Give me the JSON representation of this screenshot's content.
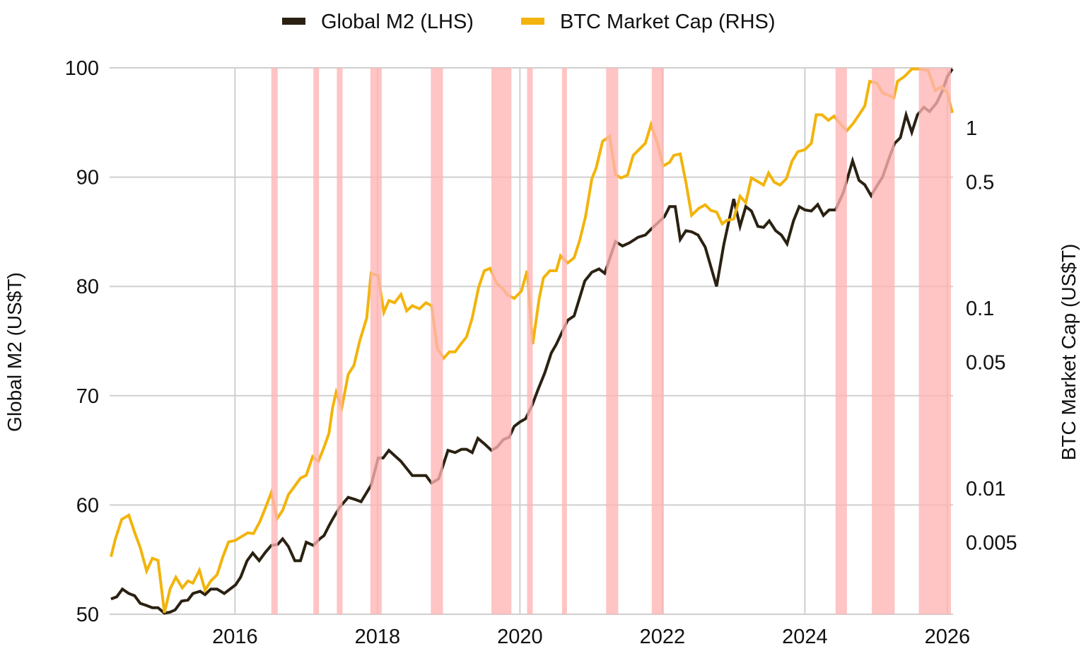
{
  "chart_data": {
    "type": "line",
    "title": "",
    "legend": {
      "placement": "top-center",
      "entries": [
        {
          "label": "Global M2 (LHS)",
          "color": "#2a2112"
        },
        {
          "label": "BTC Market Cap (RHS)",
          "color": "#f2b40c"
        }
      ]
    },
    "xlabel": "",
    "ylabel": "Global M2 (US$T)",
    "y2label": "BTC Market Cap (US$T)",
    "xlim": [
      2014.24,
      2026.08
    ],
    "ylim": [
      50,
      100
    ],
    "y2lim": [
      0.002,
      2.15
    ],
    "y2scale": "log",
    "grid": true,
    "x_ticks": [
      2016,
      2018,
      2020,
      2022,
      2024,
      2026
    ],
    "x_tick_labels": [
      "2016",
      "2018",
      "2020",
      "2022",
      "2024",
      "2026"
    ],
    "y_ticks": [
      50,
      60,
      70,
      80,
      90,
      100
    ],
    "y_tick_labels": [
      "50",
      "60",
      "70",
      "80",
      "90",
      "100"
    ],
    "y2_ticks": [
      1,
      0.5,
      0.1,
      0.05,
      0.01,
      0.005
    ],
    "y2_tick_labels": [
      "1",
      "0.5",
      "0.1",
      "0.05",
      "0.01",
      "0.005"
    ],
    "shaded_periods_color": "#ffb3b3",
    "shaded_periods": [
      [
        2016.51,
        2016.6
      ],
      [
        2017.1,
        2017.18
      ],
      [
        2017.43,
        2017.51
      ],
      [
        2017.9,
        2018.06
      ],
      [
        2018.75,
        2018.92
      ],
      [
        2019.6,
        2019.88
      ],
      [
        2020.1,
        2020.18
      ],
      [
        2020.59,
        2020.66
      ],
      [
        2021.21,
        2021.38
      ],
      [
        2021.85,
        2022.02
      ],
      [
        2024.43,
        2024.59
      ],
      [
        2024.94,
        2025.26
      ],
      [
        2025.6,
        2026.05
      ]
    ],
    "series": [
      {
        "name": "Global M2 (LHS)",
        "axis": "left",
        "color": "#2a2112",
        "points": [
          [
            2014.26,
            51.4
          ],
          [
            2014.34,
            51.6
          ],
          [
            2014.42,
            52.3
          ],
          [
            2014.51,
            51.9
          ],
          [
            2014.59,
            51.7
          ],
          [
            2014.67,
            51.0
          ],
          [
            2014.76,
            50.8
          ],
          [
            2014.84,
            50.6
          ],
          [
            2014.92,
            50.6
          ],
          [
            2015.01,
            50.1
          ],
          [
            2015.09,
            50.2
          ],
          [
            2015.16,
            50.4
          ],
          [
            2015.25,
            51.2
          ],
          [
            2015.34,
            51.3
          ],
          [
            2015.41,
            51.9
          ],
          [
            2015.51,
            52.1
          ],
          [
            2015.58,
            51.8
          ],
          [
            2015.66,
            52.3
          ],
          [
            2015.75,
            52.3
          ],
          [
            2015.85,
            51.9
          ],
          [
            2015.93,
            52.3
          ],
          [
            2016.01,
            52.7
          ],
          [
            2016.08,
            53.4
          ],
          [
            2016.17,
            54.9
          ],
          [
            2016.25,
            55.6
          ],
          [
            2016.34,
            54.9
          ],
          [
            2016.43,
            55.7
          ],
          [
            2016.51,
            56.3
          ],
          [
            2016.6,
            56.4
          ],
          [
            2016.67,
            56.9
          ],
          [
            2016.75,
            56.2
          ],
          [
            2016.84,
            54.9
          ],
          [
            2016.92,
            54.9
          ],
          [
            2017.0,
            56.6
          ],
          [
            2017.1,
            56.3
          ],
          [
            2017.19,
            56.9
          ],
          [
            2017.25,
            57.2
          ],
          [
            2017.32,
            58.1
          ],
          [
            2017.37,
            58.7
          ],
          [
            2017.47,
            59.8
          ],
          [
            2017.59,
            60.7
          ],
          [
            2017.69,
            60.5
          ],
          [
            2017.77,
            60.3
          ],
          [
            2017.91,
            61.8
          ],
          [
            2018.01,
            64.3
          ],
          [
            2018.08,
            64.3
          ],
          [
            2018.16,
            65.0
          ],
          [
            2018.33,
            64.0
          ],
          [
            2018.49,
            62.7
          ],
          [
            2018.59,
            62.7
          ],
          [
            2018.68,
            62.7
          ],
          [
            2018.76,
            62.0
          ],
          [
            2018.86,
            62.4
          ],
          [
            2018.99,
            65.0
          ],
          [
            2019.09,
            64.8
          ],
          [
            2019.18,
            65.1
          ],
          [
            2019.25,
            65.1
          ],
          [
            2019.33,
            64.8
          ],
          [
            2019.41,
            66.1
          ],
          [
            2019.5,
            65.6
          ],
          [
            2019.6,
            65.0
          ],
          [
            2019.68,
            65.3
          ],
          [
            2019.77,
            66.0
          ],
          [
            2019.85,
            66.2
          ],
          [
            2019.92,
            67.2
          ],
          [
            2020.0,
            67.6
          ],
          [
            2020.08,
            67.9
          ],
          [
            2020.17,
            69.1
          ],
          [
            2020.25,
            70.5
          ],
          [
            2020.35,
            72.1
          ],
          [
            2020.44,
            73.9
          ],
          [
            2020.51,
            74.7
          ],
          [
            2020.67,
            76.9
          ],
          [
            2020.76,
            77.3
          ],
          [
            2020.91,
            80.5
          ],
          [
            2021.01,
            81.3
          ],
          [
            2021.11,
            81.6
          ],
          [
            2021.19,
            81.2
          ],
          [
            2021.34,
            84.1
          ],
          [
            2021.44,
            83.7
          ],
          [
            2021.54,
            84.0
          ],
          [
            2021.66,
            84.5
          ],
          [
            2021.76,
            84.7
          ],
          [
            2021.85,
            85.3
          ],
          [
            2022.03,
            86.4
          ],
          [
            2022.1,
            87.3
          ],
          [
            2022.18,
            87.3
          ],
          [
            2022.25,
            84.3
          ],
          [
            2022.33,
            85.1
          ],
          [
            2022.41,
            85.0
          ],
          [
            2022.5,
            84.7
          ],
          [
            2022.6,
            83.6
          ],
          [
            2022.76,
            80.0
          ],
          [
            2022.86,
            83.8
          ],
          [
            2023.0,
            88.0
          ],
          [
            2023.09,
            85.5
          ],
          [
            2023.17,
            87.3
          ],
          [
            2023.25,
            86.9
          ],
          [
            2023.34,
            85.5
          ],
          [
            2023.42,
            85.4
          ],
          [
            2023.5,
            86.0
          ],
          [
            2023.59,
            85.1
          ],
          [
            2023.67,
            84.7
          ],
          [
            2023.75,
            83.9
          ],
          [
            2023.84,
            86.0
          ],
          [
            2023.92,
            87.3
          ],
          [
            2024.0,
            87.0
          ],
          [
            2024.09,
            86.9
          ],
          [
            2024.18,
            87.5
          ],
          [
            2024.26,
            86.5
          ],
          [
            2024.34,
            87.0
          ],
          [
            2024.43,
            87.0
          ],
          [
            2024.54,
            88.6
          ],
          [
            2024.67,
            91.5
          ],
          [
            2024.76,
            89.7
          ],
          [
            2024.84,
            89.3
          ],
          [
            2024.93,
            88.3
          ],
          [
            2025.01,
            89.2
          ],
          [
            2025.09,
            90.0
          ],
          [
            2025.18,
            91.7
          ],
          [
            2025.26,
            93.1
          ],
          [
            2025.34,
            93.6
          ],
          [
            2025.42,
            95.7
          ],
          [
            2025.5,
            94.1
          ],
          [
            2025.58,
            95.7
          ],
          [
            2025.67,
            96.4
          ],
          [
            2025.75,
            96.0
          ],
          [
            2025.85,
            96.8
          ],
          [
            2025.93,
            97.9
          ],
          [
            2026.0,
            99.2
          ],
          [
            2026.07,
            99.9
          ]
        ]
      },
      {
        "name": "BTC Market Cap (RHS)",
        "axis": "right",
        "color": "#f2b40c",
        "points": [
          [
            2014.26,
            0.00417
          ],
          [
            2014.32,
            0.00522
          ],
          [
            2014.41,
            0.00672
          ],
          [
            2014.51,
            0.0071
          ],
          [
            2014.59,
            0.00571
          ],
          [
            2014.67,
            0.00469
          ],
          [
            2014.76,
            0.00348
          ],
          [
            2014.84,
            0.00409
          ],
          [
            2014.92,
            0.00398
          ],
          [
            2015.01,
            0.00204
          ],
          [
            2015.09,
            0.00277
          ],
          [
            2015.17,
            0.00321
          ],
          [
            2015.26,
            0.0028
          ],
          [
            2015.34,
            0.00306
          ],
          [
            2015.41,
            0.00298
          ],
          [
            2015.5,
            0.00351
          ],
          [
            2015.58,
            0.00272
          ],
          [
            2015.66,
            0.00306
          ],
          [
            2015.75,
            0.00332
          ],
          [
            2015.83,
            0.00417
          ],
          [
            2015.91,
            0.00504
          ],
          [
            2016.0,
            0.00513
          ],
          [
            2016.08,
            0.00536
          ],
          [
            2016.18,
            0.00566
          ],
          [
            2016.26,
            0.00561
          ],
          [
            2016.35,
            0.00654
          ],
          [
            2016.43,
            0.00784
          ],
          [
            2016.51,
            0.00946
          ],
          [
            2016.59,
            0.00678
          ],
          [
            2016.67,
            0.00755
          ],
          [
            2016.75,
            0.00922
          ],
          [
            2016.84,
            0.0103
          ],
          [
            2016.92,
            0.0114
          ],
          [
            2017.0,
            0.0118
          ],
          [
            2017.09,
            0.015
          ],
          [
            2017.17,
            0.0141
          ],
          [
            2017.25,
            0.0169
          ],
          [
            2017.32,
            0.0202
          ],
          [
            2017.37,
            0.028
          ],
          [
            2017.42,
            0.0341
          ],
          [
            2017.5,
            0.028
          ],
          [
            2017.59,
            0.0428
          ],
          [
            2017.67,
            0.0481
          ],
          [
            2017.75,
            0.0655
          ],
          [
            2017.85,
            0.0881
          ],
          [
            2017.91,
            0.156
          ],
          [
            2018.01,
            0.151
          ],
          [
            2018.09,
            0.0947
          ],
          [
            2018.16,
            0.11
          ],
          [
            2018.24,
            0.107
          ],
          [
            2018.33,
            0.119
          ],
          [
            2018.41,
            0.0965
          ],
          [
            2018.49,
            0.103
          ],
          [
            2018.59,
            0.0991
          ],
          [
            2018.68,
            0.107
          ],
          [
            2018.76,
            0.103
          ],
          [
            2018.84,
            0.0598
          ],
          [
            2018.93,
            0.0527
          ],
          [
            2019.01,
            0.0571
          ],
          [
            2019.09,
            0.0571
          ],
          [
            2019.17,
            0.0631
          ],
          [
            2019.25,
            0.0691
          ],
          [
            2019.33,
            0.0881
          ],
          [
            2019.42,
            0.13
          ],
          [
            2019.5,
            0.161
          ],
          [
            2019.58,
            0.166
          ],
          [
            2019.67,
            0.138
          ],
          [
            2019.75,
            0.129
          ],
          [
            2019.83,
            0.118
          ],
          [
            2019.92,
            0.113
          ],
          [
            2020.02,
            0.124
          ],
          [
            2020.1,
            0.161
          ],
          [
            2020.18,
            0.0631
          ],
          [
            2020.27,
            0.113
          ],
          [
            2020.33,
            0.147
          ],
          [
            2020.42,
            0.161
          ],
          [
            2020.51,
            0.161
          ],
          [
            2020.57,
            0.195
          ],
          [
            2020.67,
            0.178
          ],
          [
            2020.76,
            0.19
          ],
          [
            2020.84,
            0.238
          ],
          [
            2020.92,
            0.321
          ],
          [
            2021.01,
            0.522
          ],
          [
            2021.07,
            0.598
          ],
          [
            2021.16,
            0.842
          ],
          [
            2021.26,
            0.897
          ],
          [
            2021.34,
            0.551
          ],
          [
            2021.42,
            0.527
          ],
          [
            2021.51,
            0.546
          ],
          [
            2021.59,
            0.703
          ],
          [
            2021.66,
            0.749
          ],
          [
            2021.76,
            0.82
          ],
          [
            2021.84,
            1.04
          ],
          [
            2021.93,
            0.82
          ],
          [
            2022.01,
            0.614
          ],
          [
            2022.1,
            0.643
          ],
          [
            2022.16,
            0.703
          ],
          [
            2022.25,
            0.716
          ],
          [
            2022.33,
            0.499
          ],
          [
            2022.41,
            0.327
          ],
          [
            2022.51,
            0.357
          ],
          [
            2022.6,
            0.374
          ],
          [
            2022.68,
            0.348
          ],
          [
            2022.76,
            0.341
          ],
          [
            2022.84,
            0.293
          ],
          [
            2022.9,
            0.306
          ],
          [
            2023.0,
            0.312
          ],
          [
            2023.09,
            0.417
          ],
          [
            2023.17,
            0.384
          ],
          [
            2023.25,
            0.527
          ],
          [
            2023.34,
            0.503
          ],
          [
            2023.42,
            0.481
          ],
          [
            2023.49,
            0.561
          ],
          [
            2023.57,
            0.499
          ],
          [
            2023.65,
            0.481
          ],
          [
            2023.74,
            0.522
          ],
          [
            2023.82,
            0.654
          ],
          [
            2023.9,
            0.736
          ],
          [
            2024.0,
            0.756
          ],
          [
            2024.09,
            0.82
          ],
          [
            2024.16,
            1.18
          ],
          [
            2024.24,
            1.18
          ],
          [
            2024.33,
            1.1
          ],
          [
            2024.41,
            1.16
          ],
          [
            2024.49,
            1.06
          ],
          [
            2024.59,
            0.964
          ],
          [
            2024.68,
            1.06
          ],
          [
            2024.76,
            1.18
          ],
          [
            2024.84,
            1.32
          ],
          [
            2024.91,
            1.81
          ],
          [
            2025.01,
            1.77
          ],
          [
            2025.09,
            1.56
          ],
          [
            2025.18,
            1.51
          ],
          [
            2025.25,
            1.47
          ],
          [
            2025.3,
            1.81
          ],
          [
            2025.4,
            1.93
          ],
          [
            2025.5,
            2.12
          ],
          [
            2025.6,
            2.12
          ],
          [
            2025.73,
            2.08
          ],
          [
            2025.83,
            1.61
          ],
          [
            2025.92,
            1.69
          ],
          [
            2026.0,
            1.56
          ],
          [
            2026.07,
            1.21
          ]
        ]
      }
    ]
  }
}
